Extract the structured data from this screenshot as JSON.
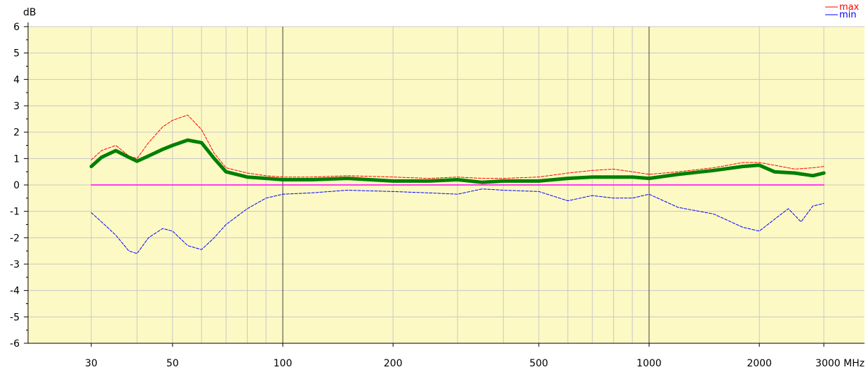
{
  "chart_data": {
    "type": "line",
    "ylabel": "dB",
    "x_scale": "log",
    "xlim": [
      30,
      3000
    ],
    "ylim": [
      -6,
      6
    ],
    "grid": true,
    "legend_placement": "top-right",
    "y_ticks": [
      6,
      5,
      4,
      3,
      2,
      1,
      0,
      -1,
      -2,
      -3,
      -4,
      -5,
      -6
    ],
    "y_tick_labels": [
      "6",
      "5",
      "4",
      "3",
      "2",
      "1",
      "0",
      "-1",
      "-2",
      "-3",
      "-4",
      "-5",
      "-6"
    ],
    "x_ticks": [
      30,
      50,
      100,
      200,
      500,
      1000,
      2000,
      3000
    ],
    "x_tick_labels": [
      "30",
      "50",
      "100",
      "200",
      "500",
      "1000",
      "2000",
      "3000 MHz"
    ],
    "colors": {
      "plot_bg": "#fdf9c4",
      "grid_minor": "#c8c8c8",
      "grid_major": "#404040",
      "max": "#ff0000",
      "min": "#0000ff",
      "mean": "#008000",
      "zero": "#ff00ff"
    },
    "series": [
      {
        "name": "max",
        "style": "dashed",
        "x": [
          30,
          32,
          35,
          38,
          40,
          43,
          47,
          50,
          55,
          60,
          65,
          70,
          80,
          90,
          100,
          120,
          150,
          200,
          250,
          300,
          350,
          400,
          500,
          600,
          700,
          800,
          900,
          1000,
          1200,
          1500,
          1800,
          2000,
          2200,
          2500,
          2800,
          3000
        ],
        "y": [
          0.95,
          1.3,
          1.5,
          1.1,
          1.0,
          1.6,
          2.2,
          2.45,
          2.65,
          2.1,
          1.2,
          0.65,
          0.45,
          0.35,
          0.3,
          0.3,
          0.35,
          0.3,
          0.25,
          0.3,
          0.25,
          0.25,
          0.3,
          0.45,
          0.55,
          0.6,
          0.5,
          0.4,
          0.5,
          0.65,
          0.85,
          0.85,
          0.75,
          0.6,
          0.65,
          0.7
        ]
      },
      {
        "name": "min",
        "style": "dashed",
        "x": [
          30,
          32,
          35,
          38,
          40,
          43,
          47,
          50,
          55,
          60,
          65,
          70,
          80,
          90,
          100,
          120,
          150,
          200,
          250,
          300,
          350,
          400,
          500,
          600,
          700,
          800,
          900,
          1000,
          1200,
          1500,
          1800,
          2000,
          2200,
          2400,
          2600,
          2800,
          3000
        ],
        "y": [
          -1.05,
          -1.4,
          -1.9,
          -2.5,
          -2.6,
          -2.0,
          -1.65,
          -1.75,
          -2.3,
          -2.45,
          -2.0,
          -1.5,
          -0.9,
          -0.5,
          -0.35,
          -0.3,
          -0.2,
          -0.25,
          -0.3,
          -0.35,
          -0.15,
          -0.2,
          -0.25,
          -0.6,
          -0.4,
          -0.5,
          -0.5,
          -0.35,
          -0.85,
          -1.1,
          -1.6,
          -1.75,
          -1.3,
          -0.9,
          -1.4,
          -0.8,
          -0.7
        ]
      },
      {
        "name": "",
        "style": "thick",
        "x": [
          30,
          32,
          35,
          38,
          40,
          43,
          47,
          50,
          55,
          60,
          65,
          70,
          80,
          90,
          100,
          120,
          150,
          200,
          250,
          300,
          350,
          400,
          500,
          600,
          700,
          800,
          900,
          1000,
          1200,
          1500,
          1800,
          2000,
          2200,
          2500,
          2800,
          3000
        ],
        "y": [
          0.7,
          1.05,
          1.3,
          1.05,
          0.9,
          1.1,
          1.35,
          1.5,
          1.7,
          1.6,
          1.0,
          0.5,
          0.3,
          0.25,
          0.2,
          0.2,
          0.25,
          0.15,
          0.15,
          0.2,
          0.1,
          0.15,
          0.15,
          0.25,
          0.3,
          0.3,
          0.3,
          0.25,
          0.4,
          0.55,
          0.7,
          0.75,
          0.5,
          0.45,
          0.35,
          0.45
        ]
      },
      {
        "name": "",
        "style": "zero-line",
        "x": [
          30,
          3000
        ],
        "y": [
          0,
          0
        ]
      }
    ],
    "legend": [
      {
        "label": "max",
        "color": "#ff0000"
      },
      {
        "label": "min",
        "color": "#0000ff"
      }
    ]
  }
}
